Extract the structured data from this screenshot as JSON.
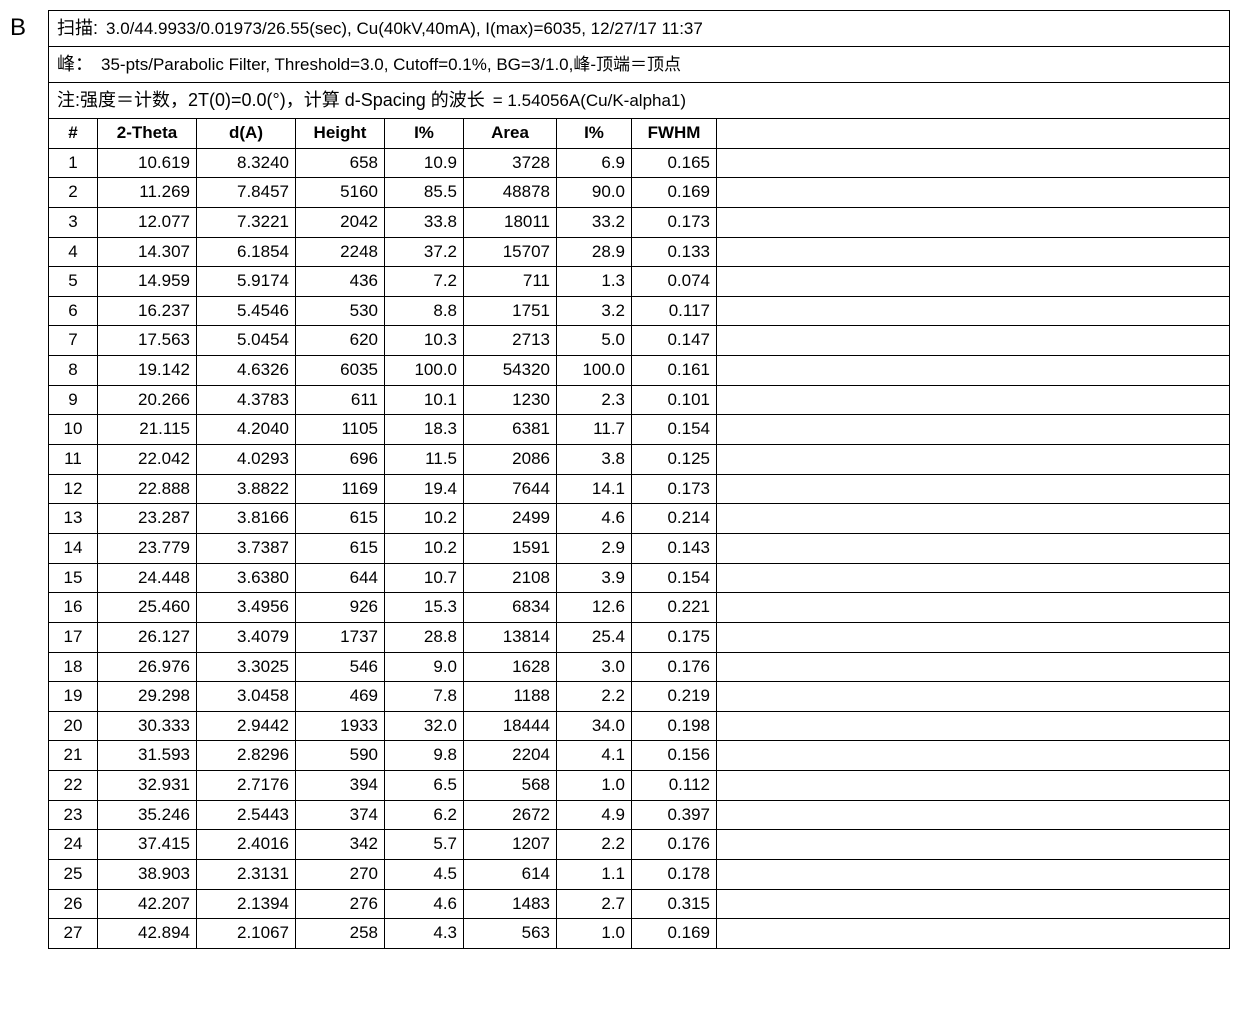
{
  "panel_label": "B",
  "header": {
    "scan_label": "扫描:",
    "scan_value": "3.0/44.9933/0.01973/26.55(sec), Cu(40kV,40mA), I(max)=6035, 12/27/17 11:37",
    "peak_label": "峰：",
    "peak_value": "35-pts/Parabolic Filter, Threshold=3.0, Cutoff=0.1%, BG=3/1.0,峰-顶端＝顶点",
    "note_label": "注:强度＝计数，2T(0)=0.0(°)，计算 d-Spacing 的波长",
    "note_value": "= 1.54056A(Cu/K-alpha1)"
  },
  "columns": [
    "#",
    "2-Theta",
    "d(A)",
    "Height",
    "I%",
    "Area",
    "I%",
    "FWHM"
  ],
  "rows": [
    [
      1,
      "10.619",
      "8.3240",
      "658",
      "10.9",
      "3728",
      "6.9",
      "0.165"
    ],
    [
      2,
      "11.269",
      "7.8457",
      "5160",
      "85.5",
      "48878",
      "90.0",
      "0.169"
    ],
    [
      3,
      "12.077",
      "7.3221",
      "2042",
      "33.8",
      "18011",
      "33.2",
      "0.173"
    ],
    [
      4,
      "14.307",
      "6.1854",
      "2248",
      "37.2",
      "15707",
      "28.9",
      "0.133"
    ],
    [
      5,
      "14.959",
      "5.9174",
      "436",
      "7.2",
      "711",
      "1.3",
      "0.074"
    ],
    [
      6,
      "16.237",
      "5.4546",
      "530",
      "8.8",
      "1751",
      "3.2",
      "0.117"
    ],
    [
      7,
      "17.563",
      "5.0454",
      "620",
      "10.3",
      "2713",
      "5.0",
      "0.147"
    ],
    [
      8,
      "19.142",
      "4.6326",
      "6035",
      "100.0",
      "54320",
      "100.0",
      "0.161"
    ],
    [
      9,
      "20.266",
      "4.3783",
      "611",
      "10.1",
      "1230",
      "2.3",
      "0.101"
    ],
    [
      10,
      "21.115",
      "4.2040",
      "1105",
      "18.3",
      "6381",
      "11.7",
      "0.154"
    ],
    [
      11,
      "22.042",
      "4.0293",
      "696",
      "11.5",
      "2086",
      "3.8",
      "0.125"
    ],
    [
      12,
      "22.888",
      "3.8822",
      "1169",
      "19.4",
      "7644",
      "14.1",
      "0.173"
    ],
    [
      13,
      "23.287",
      "3.8166",
      "615",
      "10.2",
      "2499",
      "4.6",
      "0.214"
    ],
    [
      14,
      "23.779",
      "3.7387",
      "615",
      "10.2",
      "1591",
      "2.9",
      "0.143"
    ],
    [
      15,
      "24.448",
      "3.6380",
      "644",
      "10.7",
      "2108",
      "3.9",
      "0.154"
    ],
    [
      16,
      "25.460",
      "3.4956",
      "926",
      "15.3",
      "6834",
      "12.6",
      "0.221"
    ],
    [
      17,
      "26.127",
      "3.4079",
      "1737",
      "28.8",
      "13814",
      "25.4",
      "0.175"
    ],
    [
      18,
      "26.976",
      "3.3025",
      "546",
      "9.0",
      "1628",
      "3.0",
      "0.176"
    ],
    [
      19,
      "29.298",
      "3.0458",
      "469",
      "7.8",
      "1188",
      "2.2",
      "0.219"
    ],
    [
      20,
      "30.333",
      "2.9442",
      "1933",
      "32.0",
      "18444",
      "34.0",
      "0.198"
    ],
    [
      21,
      "31.593",
      "2.8296",
      "590",
      "9.8",
      "2204",
      "4.1",
      "0.156"
    ],
    [
      22,
      "32.931",
      "2.7176",
      "394",
      "6.5",
      "568",
      "1.0",
      "0.112"
    ],
    [
      23,
      "35.246",
      "2.5443",
      "374",
      "6.2",
      "2672",
      "4.9",
      "0.397"
    ],
    [
      24,
      "37.415",
      "2.4016",
      "342",
      "5.7",
      "1207",
      "2.2",
      "0.176"
    ],
    [
      25,
      "38.903",
      "2.3131",
      "270",
      "4.5",
      "614",
      "1.1",
      "0.178"
    ],
    [
      26,
      "42.207",
      "2.1394",
      "276",
      "4.6",
      "1483",
      "2.7",
      "0.315"
    ],
    [
      27,
      "42.894",
      "2.1067",
      "258",
      "4.3",
      "563",
      "1.0",
      "0.169"
    ]
  ]
}
